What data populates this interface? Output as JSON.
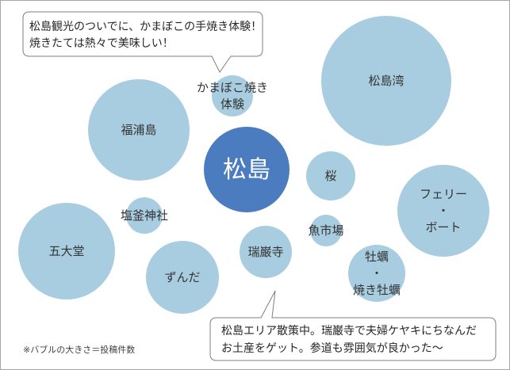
{
  "callout_top": {
    "lines": [
      "松島観光のついでに、かまぼこの手焼き体験！",
      "焼きたては熱々で美味しい！"
    ]
  },
  "callout_bottom": {
    "lines": [
      "松島エリア散策中。瑞巌寺で夫婦ケヤキにちなんだ",
      "お土産をゲット。参道も雰囲気が良かった～"
    ]
  },
  "bubbles": [
    {
      "key": "matsushima-bay",
      "lines": [
        "松島湾"
      ],
      "color": "#a8cde0"
    },
    {
      "key": "fukuurajima",
      "lines": [
        "福浦島"
      ],
      "color": "#a8cde0"
    },
    {
      "key": "kamaboko",
      "lines": [
        "かまぼこ焼き",
        "体験"
      ],
      "color": "#a8cde0"
    },
    {
      "key": "matsushima",
      "lines": [
        "松島"
      ],
      "color": "#4a7cbf",
      "center": true
    },
    {
      "key": "sakura",
      "lines": [
        "桜"
      ],
      "color": "#a8cde0"
    },
    {
      "key": "ferry-boat",
      "lines": [
        "フェリー",
        "・",
        "ボート"
      ],
      "color": "#a8cde0"
    },
    {
      "key": "shiogama-shrine",
      "lines": [
        "塩釜神社"
      ],
      "color": "#a8cde0"
    },
    {
      "key": "godaido",
      "lines": [
        "五大堂"
      ],
      "color": "#a8cde0"
    },
    {
      "key": "uoichiba",
      "lines": [
        "魚市場"
      ],
      "color": "#a8cde0"
    },
    {
      "key": "zuiganji",
      "lines": [
        "瑞巌寺"
      ],
      "color": "#a8cde0"
    },
    {
      "key": "zunda",
      "lines": [
        "ずんだ"
      ],
      "color": "#a8cde0"
    },
    {
      "key": "oyster",
      "lines": [
        "牡蠣",
        "・",
        "焼き牡蠣"
      ],
      "color": "#a8cde0"
    }
  ],
  "footnote": "※バブルの大きさ＝投稿件数"
}
